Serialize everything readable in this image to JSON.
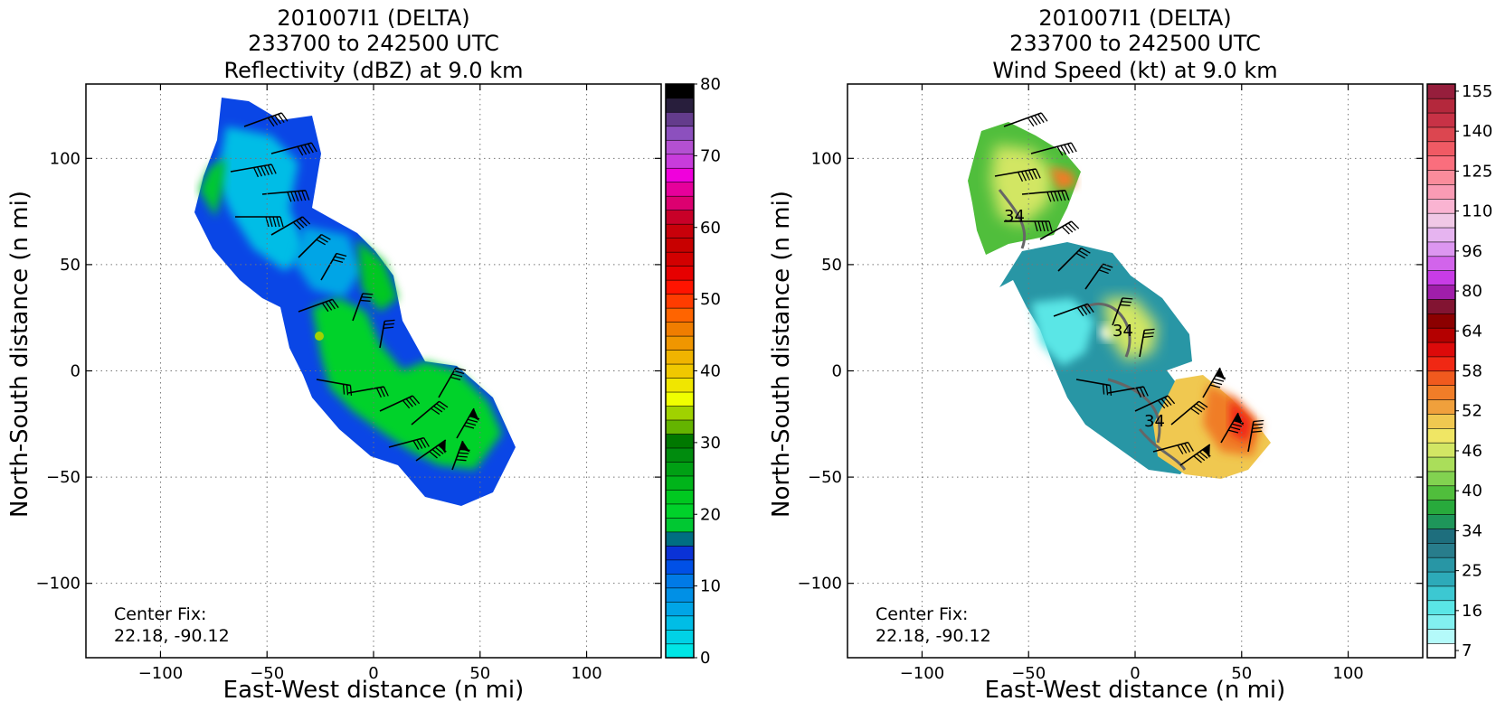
{
  "chart_data": [
    {
      "type": "heatmap",
      "panel": "reflectivity",
      "title_lines": [
        "201007I1 (DELTA)",
        "233700 to 242500 UTC",
        "Reflectivity (dBZ) at 9.0 km"
      ],
      "xlabel": "East-West distance (n mi)",
      "ylabel": "North-South distance (n mi)",
      "xlim": [
        -135,
        135
      ],
      "ylim": [
        -135,
        135
      ],
      "xticks": [
        -100,
        -50,
        0,
        50,
        100
      ],
      "yticks": [
        -100,
        -50,
        0,
        50,
        100
      ],
      "grid": true,
      "center_fix": {
        "label": "Center Fix:",
        "value": "22.18, -90.12",
        "position": "lower-left"
      },
      "colorbar": {
        "min": 0,
        "max": 80,
        "tick_labels": [
          "0",
          "10",
          "20",
          "30",
          "40",
          "50",
          "60",
          "70",
          "80"
        ],
        "bins": [
          "#00e6e6",
          "#00d2e6",
          "#00bde6",
          "#00a5e6",
          "#0090e6",
          "#007ae6",
          "#0050e6",
          "#0a32d6",
          "#006e82",
          "#00c832",
          "#00d22a",
          "#00c820",
          "#00b41a",
          "#00a014",
          "#008c0e",
          "#007800",
          "#64b400",
          "#a0d200",
          "#f0ff00",
          "#f0e600",
          "#f0c800",
          "#f0b400",
          "#f09600",
          "#f07d00",
          "#ff6400",
          "#ff3c00",
          "#ff1400",
          "#e60000",
          "#d20000",
          "#c80000",
          "#c8000a",
          "#c80028",
          "#dc0070",
          "#e6009b",
          "#f000dc",
          "#c83cdc",
          "#b450d2",
          "#8c50be",
          "#643c8c",
          "#281e3c",
          "#000000"
        ]
      },
      "barb_note": "wind barbs overlaid"
    },
    {
      "type": "heatmap",
      "panel": "wind_speed",
      "title_lines": [
        "201007I1 (DELTA)",
        "233700 to 242500 UTC",
        "Wind Speed (kt) at 9.0 km"
      ],
      "xlabel": "East-West distance (n mi)",
      "ylabel": "North-South distance (n mi)",
      "xlim": [
        -135,
        135
      ],
      "ylim": [
        -135,
        135
      ],
      "xticks": [
        -100,
        -50,
        0,
        50,
        100
      ],
      "yticks": [
        -100,
        -50,
        0,
        50,
        100
      ],
      "grid": true,
      "center_fix": {
        "label": "Center Fix:",
        "value": "22.18, -90.12",
        "position": "lower-left"
      },
      "contour_label": "34",
      "colorbar": {
        "tick_labels": [
          "7",
          "16",
          "25",
          "34",
          "40",
          "46",
          "52",
          "58",
          "64",
          "80",
          "96",
          "110",
          "125",
          "140",
          "155"
        ],
        "bins": [
          "#ffffff",
          "#b4fafa",
          "#82f0f0",
          "#5ae6e6",
          "#3cc8d2",
          "#2daab9",
          "#2896a5",
          "#287d8c",
          "#1e6e7d",
          "#1e965a",
          "#28aa3c",
          "#50be3c",
          "#82d250",
          "#aade5a",
          "#d2e664",
          "#f0e664",
          "#f0c850",
          "#f0a03c",
          "#f07d28",
          "#f05a1e",
          "#f02814",
          "#dc0a0a",
          "#b40000",
          "#8c0000",
          "#821432",
          "#a01eaa",
          "#c83ce6",
          "#d264eb",
          "#dc96f0",
          "#e6b4f0",
          "#f0c8e6",
          "#fab4d2",
          "#fa9bb4",
          "#fa8c9b",
          "#fa6e7d",
          "#f05a64",
          "#dc4650",
          "#c83246",
          "#b4283c",
          "#961e3c"
        ]
      },
      "barb_note": "wind barbs overlaid"
    }
  ]
}
